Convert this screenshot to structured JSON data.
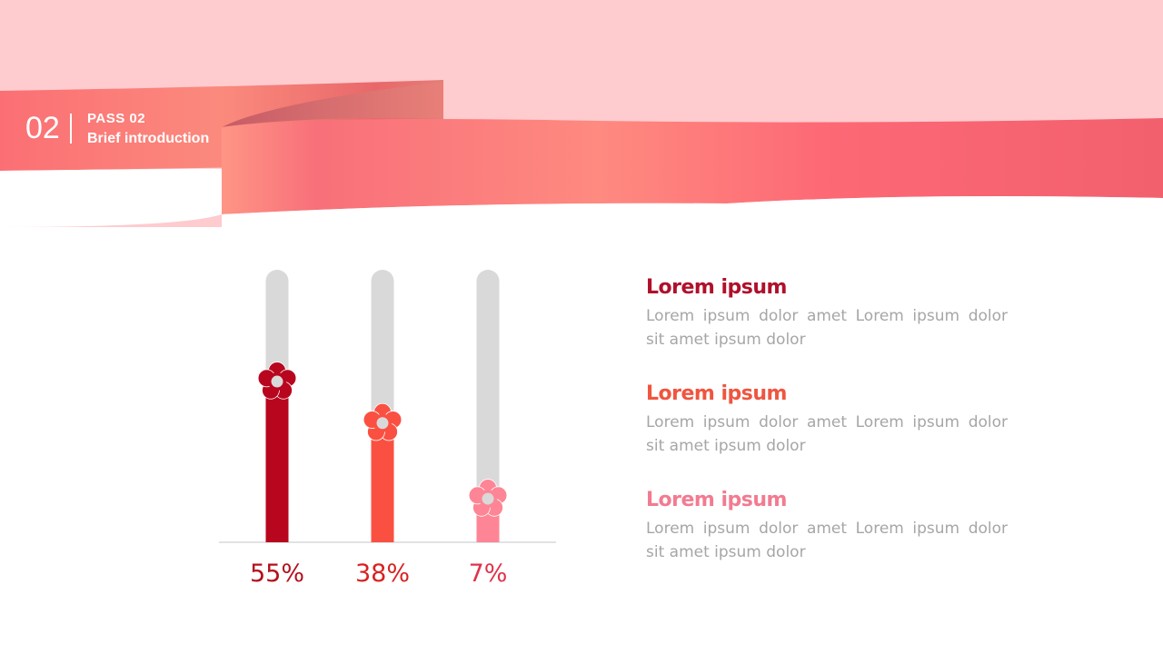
{
  "header": {
    "number": "02",
    "title": "PASS  02",
    "subtitle": "Brief introduction"
  },
  "chart_data": {
    "type": "bar",
    "categories": [
      "55%",
      "38%",
      "7%"
    ],
    "values": [
      55,
      38,
      7
    ],
    "ylim": [
      0,
      100
    ],
    "colors": [
      "#b8061e",
      "#fa5042",
      "#fe8595"
    ],
    "label_colors": [
      "#b4101e",
      "#d82222",
      "#e0324a"
    ],
    "track_color": "#d9d9d9",
    "marker": "flower"
  },
  "items": [
    {
      "title": "Lorem ipsum",
      "text": "Lorem ipsum dolor amet Lorem ipsum dolor sit amet ipsum dolor",
      "color": "#b0102a"
    },
    {
      "title": "Lorem ipsum",
      "text": "Lorem ipsum dolor amet Lorem ipsum dolor sit amet ipsum dolor",
      "color": "#f0553f"
    },
    {
      "title": "Lorem ipsum",
      "text": "Lorem ipsum dolor amet Lorem ipsum dolor sit amet ipsum dolor",
      "color": "#f27b91"
    }
  ]
}
